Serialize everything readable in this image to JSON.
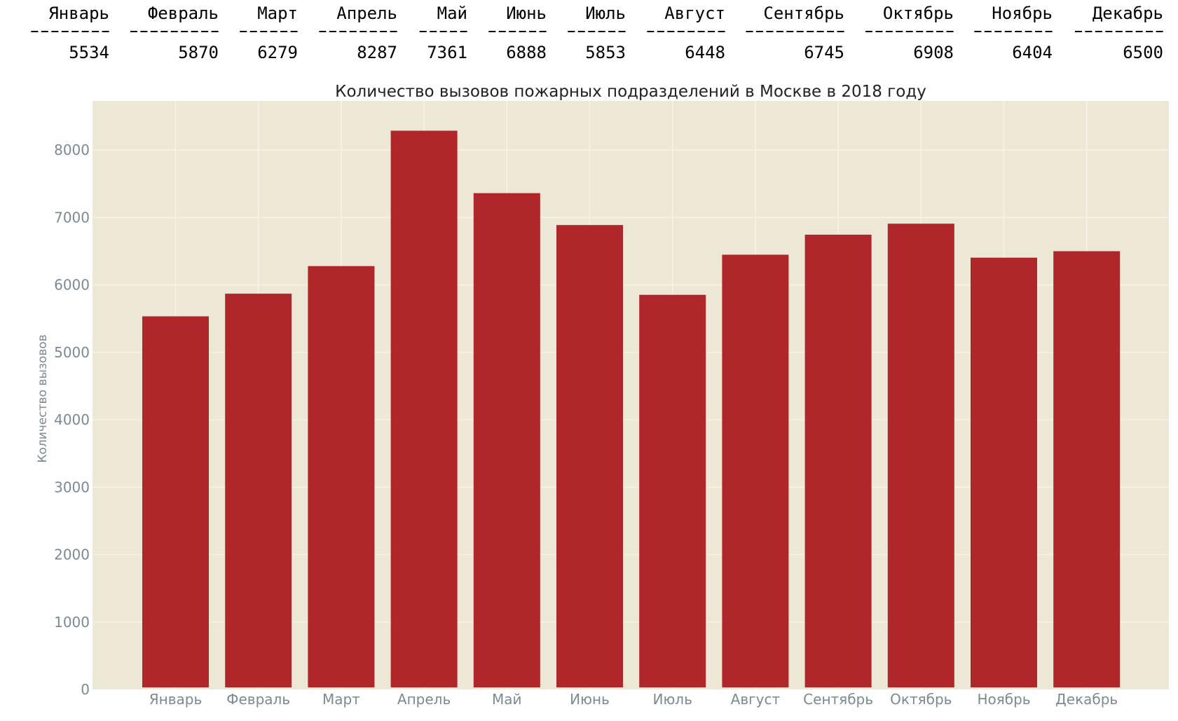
{
  "table": {
    "headers": [
      "Январь",
      "Февраль",
      "Март",
      "Апрель",
      "Май",
      "Июнь",
      "Июль",
      "Август",
      "Сентябрь",
      "Октябрь",
      "Ноябрь",
      "Декабрь"
    ],
    "values": [
      "5534",
      "5870",
      "6279",
      "8287",
      "7361",
      "6888",
      "5853",
      "6448",
      "6745",
      "6908",
      "6404",
      "6500"
    ]
  },
  "chart_data": {
    "type": "bar",
    "title": "Количество вызовов пожарных подразделений в Москве в 2018 году",
    "xlabel": "",
    "ylabel": "Количество вызовов",
    "categories": [
      "Январь",
      "Февраль",
      "Март",
      "Апрель",
      "Май",
      "Июнь",
      "Июль",
      "Август",
      "Сентябрь",
      "Октябрь",
      "Ноябрь",
      "Декабрь"
    ],
    "values": [
      5534,
      5870,
      6279,
      8287,
      7361,
      6888,
      5853,
      6448,
      6745,
      6908,
      6404,
      6500
    ],
    "ylim": [
      0,
      8729
    ],
    "yticks": [
      "0",
      "1000",
      "2000",
      "3000",
      "4000",
      "5000",
      "6000",
      "7000",
      "8000"
    ],
    "grid": true,
    "colors": {
      "bar": "#b0272a",
      "plot_background": "#ede7d6",
      "grid": "#f7f3e8",
      "tick_label": "#7a8a93",
      "title": "#222222"
    }
  }
}
